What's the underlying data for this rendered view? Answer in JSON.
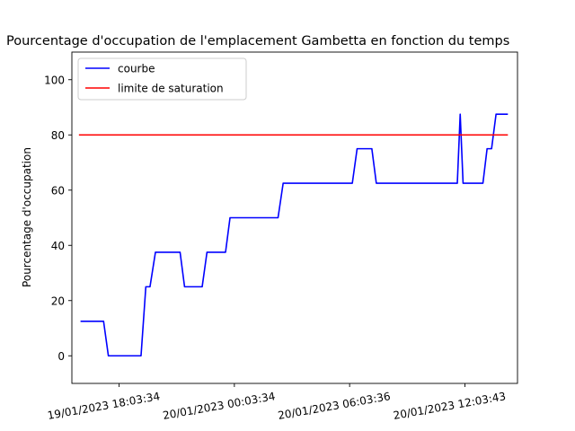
{
  "chart_data": {
    "type": "line",
    "title": "Pourcentage d'occupation de l'emplacement Gambetta en fonction du temps",
    "xlabel": "",
    "ylabel": "Pourcentage d'occupation",
    "ylim": [
      -10,
      110
    ],
    "yticks": [
      0,
      20,
      40,
      60,
      80,
      100
    ],
    "xlim": [
      "19/01/2023 15:36",
      "20/01/2023 14:48"
    ],
    "xticks": [
      {
        "label": "19/01/2023 18:03:34",
        "time": "19/01/2023 18:03:34"
      },
      {
        "label": "20/01/2023 00:03:34",
        "time": "20/01/2023 00:03:34"
      },
      {
        "label": "20/01/2023 06:03:36",
        "time": "20/01/2023 06:03:36"
      },
      {
        "label": "20/01/2023 12:03:43",
        "time": "20/01/2023 12:03:43"
      }
    ],
    "grid": false,
    "legend_position": "top-left",
    "series": [
      {
        "name": "courbe",
        "color": "#0000ff",
        "points": [
          [
            "19/01/2023 16:03",
            12.5
          ],
          [
            "19/01/2023 17:15",
            12.5
          ],
          [
            "19/01/2023 17:30",
            0
          ],
          [
            "19/01/2023 19:12",
            0
          ],
          [
            "19/01/2023 19:27",
            25
          ],
          [
            "19/01/2023 19:40",
            25
          ],
          [
            "19/01/2023 19:57",
            37.5
          ],
          [
            "19/01/2023 21:14",
            37.5
          ],
          [
            "19/01/2023 21:28",
            25
          ],
          [
            "19/01/2023 22:23",
            25
          ],
          [
            "19/01/2023 22:38",
            37.5
          ],
          [
            "19/01/2023 23:36",
            37.5
          ],
          [
            "19/01/2023 23:50",
            50
          ],
          [
            "20/01/2023 02:20",
            50
          ],
          [
            "20/01/2023 02:36",
            62.5
          ],
          [
            "20/01/2023 06:12",
            62.5
          ],
          [
            "20/01/2023 06:27",
            75
          ],
          [
            "20/01/2023 07:13",
            75
          ],
          [
            "20/01/2023 07:27",
            62.5
          ],
          [
            "20/01/2023 11:40",
            62.5
          ],
          [
            "20/01/2023 11:49",
            87.5
          ],
          [
            "20/01/2023 11:58",
            62.5
          ],
          [
            "20/01/2023 13:00",
            62.5
          ],
          [
            "20/01/2023 13:13",
            75
          ],
          [
            "20/01/2023 13:27",
            75
          ],
          [
            "20/01/2023 13:41",
            87.5
          ],
          [
            "20/01/2023 14:18",
            87.5
          ]
        ]
      },
      {
        "name": "limite de saturation",
        "color": "#ff0000",
        "points": [
          [
            "19/01/2023 15:58",
            80
          ],
          [
            "20/01/2023 14:18",
            80
          ]
        ]
      }
    ]
  }
}
